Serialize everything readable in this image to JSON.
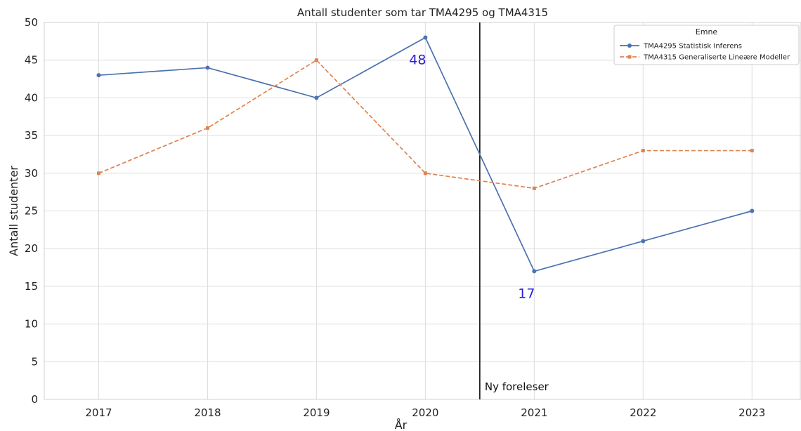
{
  "chart_data": {
    "type": "line",
    "title": "Antall studenter som tar TMA4295 og TMA4315",
    "xlabel": "År",
    "ylabel": "Antall studenter",
    "x": [
      2017,
      2018,
      2019,
      2020,
      2021,
      2022,
      2023
    ],
    "ylim": [
      0,
      50
    ],
    "yticks": [
      0,
      5,
      10,
      15,
      20,
      25,
      30,
      35,
      40,
      45,
      50
    ],
    "grid": true,
    "legend": {
      "title": "Emne",
      "placement": "top-right"
    },
    "series": [
      {
        "name": "TMA4295 Statistisk Inferens",
        "values": [
          43,
          44,
          40,
          48,
          17,
          21,
          25
        ],
        "color": "#4c72b0",
        "line_style": "solid",
        "marker": "circle"
      },
      {
        "name": "TMA4315 Generaliserte Lineære Modeller",
        "values": [
          30,
          36,
          45,
          30,
          28,
          33,
          33
        ],
        "color": "#dd8452",
        "line_style": "dashed",
        "marker": "square"
      }
    ],
    "vertical_line": {
      "x": 2020.5,
      "label": "Ny foreleser",
      "color": "#111111"
    },
    "annotations": [
      {
        "text": "48",
        "x": 2020,
        "y": 48,
        "color": "#2a1fd6"
      },
      {
        "text": "17",
        "x": 2021,
        "y": 17,
        "color": "#2a1fd6"
      }
    ]
  }
}
